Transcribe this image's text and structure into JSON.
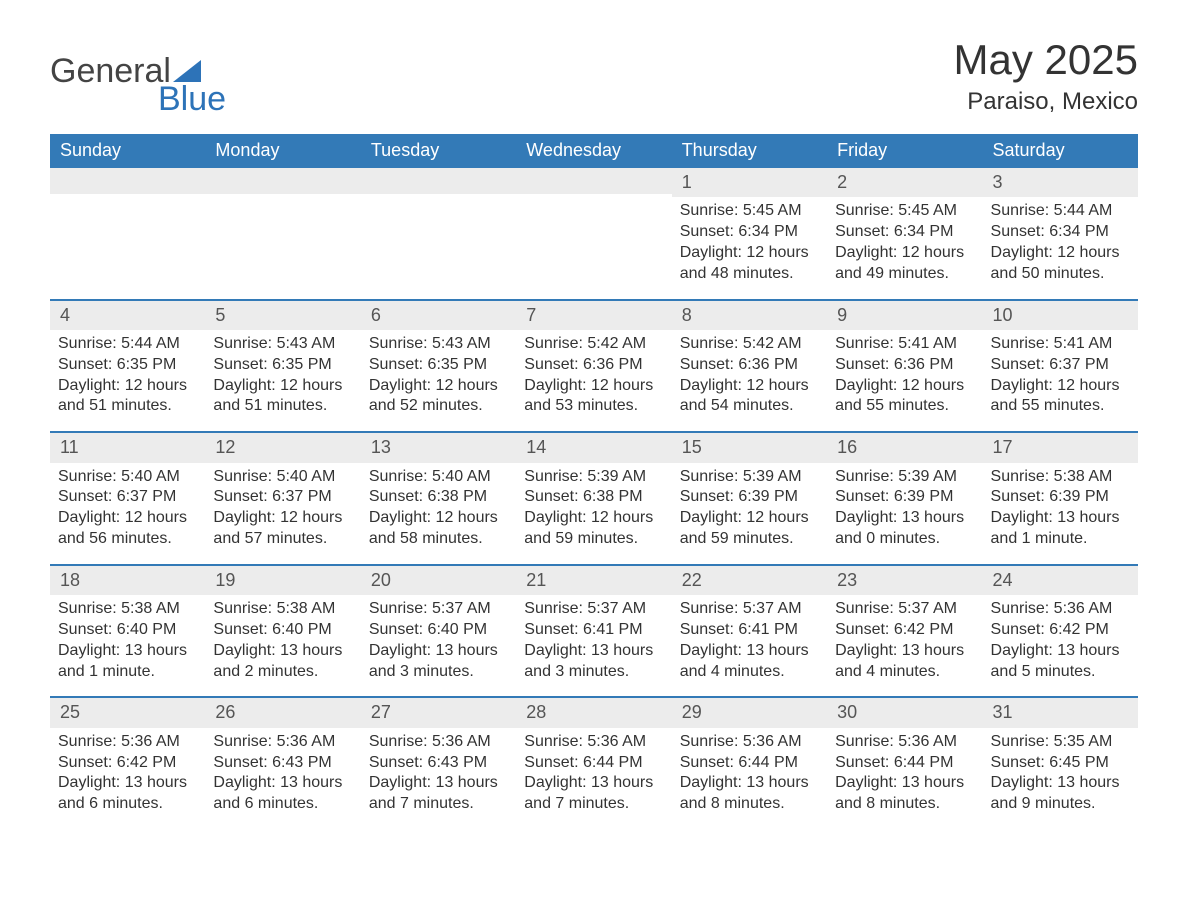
{
  "brand": {
    "word1": "General",
    "word2": "Blue",
    "accent_color": "#2d73b8"
  },
  "title": "May 2025",
  "subtitle": "Paraiso, Mexico",
  "header_bg": "#337ab7",
  "header_fg": "#ffffff",
  "week_border_color": "#337ab7",
  "daynum_bg": "#ececec",
  "text_color": "#333333",
  "weekday_names": [
    "Sunday",
    "Monday",
    "Tuesday",
    "Wednesday",
    "Thursday",
    "Friday",
    "Saturday"
  ],
  "weeks": [
    [
      {
        "blank": true
      },
      {
        "blank": true
      },
      {
        "blank": true
      },
      {
        "blank": true
      },
      {
        "n": "1",
        "sunrise": "Sunrise: 5:45 AM",
        "sunset": "Sunset: 6:34 PM",
        "d1": "Daylight: 12 hours",
        "d2": "and 48 minutes."
      },
      {
        "n": "2",
        "sunrise": "Sunrise: 5:45 AM",
        "sunset": "Sunset: 6:34 PM",
        "d1": "Daylight: 12 hours",
        "d2": "and 49 minutes."
      },
      {
        "n": "3",
        "sunrise": "Sunrise: 5:44 AM",
        "sunset": "Sunset: 6:34 PM",
        "d1": "Daylight: 12 hours",
        "d2": "and 50 minutes."
      }
    ],
    [
      {
        "n": "4",
        "sunrise": "Sunrise: 5:44 AM",
        "sunset": "Sunset: 6:35 PM",
        "d1": "Daylight: 12 hours",
        "d2": "and 51 minutes."
      },
      {
        "n": "5",
        "sunrise": "Sunrise: 5:43 AM",
        "sunset": "Sunset: 6:35 PM",
        "d1": "Daylight: 12 hours",
        "d2": "and 51 minutes."
      },
      {
        "n": "6",
        "sunrise": "Sunrise: 5:43 AM",
        "sunset": "Sunset: 6:35 PM",
        "d1": "Daylight: 12 hours",
        "d2": "and 52 minutes."
      },
      {
        "n": "7",
        "sunrise": "Sunrise: 5:42 AM",
        "sunset": "Sunset: 6:36 PM",
        "d1": "Daylight: 12 hours",
        "d2": "and 53 minutes."
      },
      {
        "n": "8",
        "sunrise": "Sunrise: 5:42 AM",
        "sunset": "Sunset: 6:36 PM",
        "d1": "Daylight: 12 hours",
        "d2": "and 54 minutes."
      },
      {
        "n": "9",
        "sunrise": "Sunrise: 5:41 AM",
        "sunset": "Sunset: 6:36 PM",
        "d1": "Daylight: 12 hours",
        "d2": "and 55 minutes."
      },
      {
        "n": "10",
        "sunrise": "Sunrise: 5:41 AM",
        "sunset": "Sunset: 6:37 PM",
        "d1": "Daylight: 12 hours",
        "d2": "and 55 minutes."
      }
    ],
    [
      {
        "n": "11",
        "sunrise": "Sunrise: 5:40 AM",
        "sunset": "Sunset: 6:37 PM",
        "d1": "Daylight: 12 hours",
        "d2": "and 56 minutes."
      },
      {
        "n": "12",
        "sunrise": "Sunrise: 5:40 AM",
        "sunset": "Sunset: 6:37 PM",
        "d1": "Daylight: 12 hours",
        "d2": "and 57 minutes."
      },
      {
        "n": "13",
        "sunrise": "Sunrise: 5:40 AM",
        "sunset": "Sunset: 6:38 PM",
        "d1": "Daylight: 12 hours",
        "d2": "and 58 minutes."
      },
      {
        "n": "14",
        "sunrise": "Sunrise: 5:39 AM",
        "sunset": "Sunset: 6:38 PM",
        "d1": "Daylight: 12 hours",
        "d2": "and 59 minutes."
      },
      {
        "n": "15",
        "sunrise": "Sunrise: 5:39 AM",
        "sunset": "Sunset: 6:39 PM",
        "d1": "Daylight: 12 hours",
        "d2": "and 59 minutes."
      },
      {
        "n": "16",
        "sunrise": "Sunrise: 5:39 AM",
        "sunset": "Sunset: 6:39 PM",
        "d1": "Daylight: 13 hours",
        "d2": "and 0 minutes."
      },
      {
        "n": "17",
        "sunrise": "Sunrise: 5:38 AM",
        "sunset": "Sunset: 6:39 PM",
        "d1": "Daylight: 13 hours",
        "d2": "and 1 minute."
      }
    ],
    [
      {
        "n": "18",
        "sunrise": "Sunrise: 5:38 AM",
        "sunset": "Sunset: 6:40 PM",
        "d1": "Daylight: 13 hours",
        "d2": "and 1 minute."
      },
      {
        "n": "19",
        "sunrise": "Sunrise: 5:38 AM",
        "sunset": "Sunset: 6:40 PM",
        "d1": "Daylight: 13 hours",
        "d2": "and 2 minutes."
      },
      {
        "n": "20",
        "sunrise": "Sunrise: 5:37 AM",
        "sunset": "Sunset: 6:40 PM",
        "d1": "Daylight: 13 hours",
        "d2": "and 3 minutes."
      },
      {
        "n": "21",
        "sunrise": "Sunrise: 5:37 AM",
        "sunset": "Sunset: 6:41 PM",
        "d1": "Daylight: 13 hours",
        "d2": "and 3 minutes."
      },
      {
        "n": "22",
        "sunrise": "Sunrise: 5:37 AM",
        "sunset": "Sunset: 6:41 PM",
        "d1": "Daylight: 13 hours",
        "d2": "and 4 minutes."
      },
      {
        "n": "23",
        "sunrise": "Sunrise: 5:37 AM",
        "sunset": "Sunset: 6:42 PM",
        "d1": "Daylight: 13 hours",
        "d2": "and 4 minutes."
      },
      {
        "n": "24",
        "sunrise": "Sunrise: 5:36 AM",
        "sunset": "Sunset: 6:42 PM",
        "d1": "Daylight: 13 hours",
        "d2": "and 5 minutes."
      }
    ],
    [
      {
        "n": "25",
        "sunrise": "Sunrise: 5:36 AM",
        "sunset": "Sunset: 6:42 PM",
        "d1": "Daylight: 13 hours",
        "d2": "and 6 minutes."
      },
      {
        "n": "26",
        "sunrise": "Sunrise: 5:36 AM",
        "sunset": "Sunset: 6:43 PM",
        "d1": "Daylight: 13 hours",
        "d2": "and 6 minutes."
      },
      {
        "n": "27",
        "sunrise": "Sunrise: 5:36 AM",
        "sunset": "Sunset: 6:43 PM",
        "d1": "Daylight: 13 hours",
        "d2": "and 7 minutes."
      },
      {
        "n": "28",
        "sunrise": "Sunrise: 5:36 AM",
        "sunset": "Sunset: 6:44 PM",
        "d1": "Daylight: 13 hours",
        "d2": "and 7 minutes."
      },
      {
        "n": "29",
        "sunrise": "Sunrise: 5:36 AM",
        "sunset": "Sunset: 6:44 PM",
        "d1": "Daylight: 13 hours",
        "d2": "and 8 minutes."
      },
      {
        "n": "30",
        "sunrise": "Sunrise: 5:36 AM",
        "sunset": "Sunset: 6:44 PM",
        "d1": "Daylight: 13 hours",
        "d2": "and 8 minutes."
      },
      {
        "n": "31",
        "sunrise": "Sunrise: 5:35 AM",
        "sunset": "Sunset: 6:45 PM",
        "d1": "Daylight: 13 hours",
        "d2": "and 9 minutes."
      }
    ]
  ]
}
